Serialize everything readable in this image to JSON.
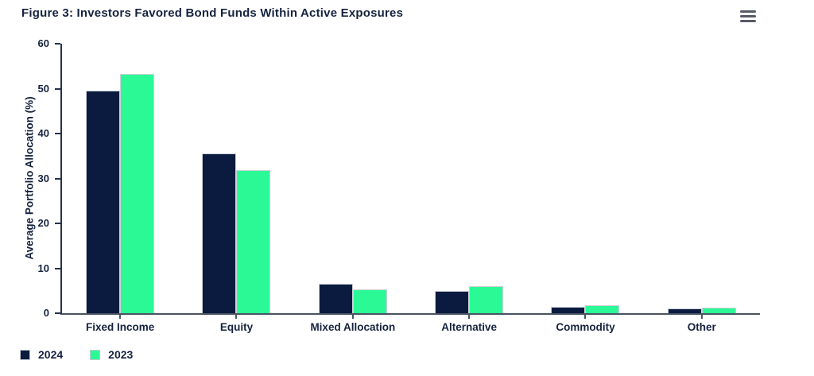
{
  "page": {
    "title": "Figure 3: Investors Favored Bond Funds Within Active Exposures"
  },
  "menu": {
    "icon": "hamburger-menu-icon"
  },
  "chart_data": {
    "type": "bar",
    "title": "Figure 3: Investors Favored Bond Funds Within Active Exposures",
    "categories": [
      "Fixed Income",
      "Equity",
      "Mixed Allocation",
      "Alternative",
      "Commodity",
      "Other"
    ],
    "series": [
      {
        "name": "2024",
        "color": "#0a1b3f",
        "values": [
          49.5,
          35.6,
          6.6,
          5.0,
          1.5,
          1.1
        ]
      },
      {
        "name": "2023",
        "color": "#2bf996",
        "values": [
          53.3,
          31.8,
          5.4,
          6.0,
          1.8,
          1.2
        ]
      }
    ],
    "xlabel": "",
    "ylabel": "Average Portfolio Allocation (%)",
    "ylim": [
      0,
      60
    ],
    "yticks": [
      0,
      10,
      20,
      30,
      40,
      50,
      60
    ],
    "grid": false,
    "legend_position": "bottom-left"
  },
  "colors": {
    "series_2024": "#0a1b3f",
    "series_2023": "#2bf996",
    "text": "#16233f",
    "y_axis_line": "#26324d",
    "x_axis_line": "#4a5362"
  }
}
